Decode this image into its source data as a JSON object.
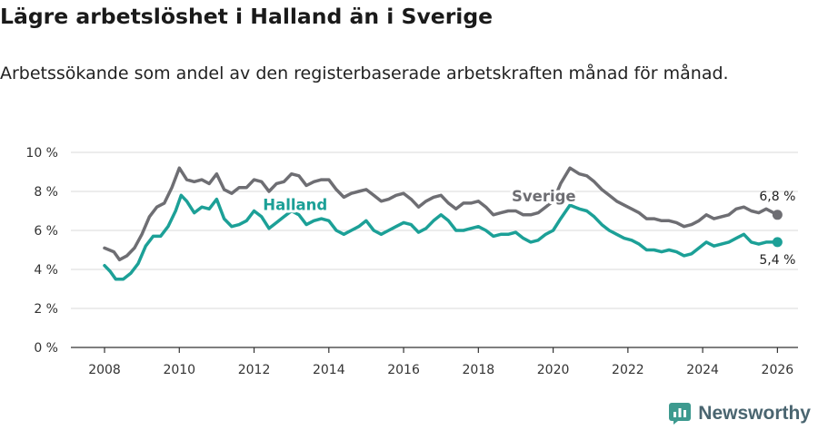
{
  "title": "Lägre arbetslöshet i Halland än i Sverige",
  "subtitle": "Arbetssökande som andel av den registerbaserade arbetskraften månad för månad.",
  "brand": {
    "name": "Newsworthy",
    "icon": "newsworthy-logo-icon",
    "color": "#3d9a8f"
  },
  "chart_data": {
    "type": "line",
    "title": "Lägre arbetslöshet i Halland än i Sverige",
    "xlabel": "",
    "ylabel": "",
    "xlim": [
      2007.1,
      2026.55
    ],
    "ylim": [
      0,
      10
    ],
    "grid": true,
    "x_ticks": [
      2008,
      2010,
      2012,
      2014,
      2016,
      2018,
      2020,
      2022,
      2024,
      2026
    ],
    "x_tick_labels": [
      "2008",
      "2010",
      "2012",
      "2014",
      "2016",
      "2018",
      "2020",
      "2022",
      "2024",
      "2026"
    ],
    "y_ticks": [
      0,
      2,
      4,
      6,
      8,
      10
    ],
    "y_tick_labels": [
      "0 %",
      "2 %",
      "4 %",
      "6 %",
      "8 %",
      "10 %"
    ],
    "series": [
      {
        "name": "Sverige",
        "label": "Sverige",
        "color": "#6e6e73",
        "end_label": "6,8 %",
        "label_at": [
          2019.75,
          7.5
        ],
        "points": [
          [
            2008.0,
            5.1
          ],
          [
            2008.25,
            4.9
          ],
          [
            2008.4,
            4.5
          ],
          [
            2008.6,
            4.7
          ],
          [
            2008.8,
            5.1
          ],
          [
            2009.0,
            5.8
          ],
          [
            2009.2,
            6.7
          ],
          [
            2009.4,
            7.2
          ],
          [
            2009.6,
            7.4
          ],
          [
            2009.8,
            8.2
          ],
          [
            2010.0,
            9.2
          ],
          [
            2010.2,
            8.6
          ],
          [
            2010.4,
            8.5
          ],
          [
            2010.6,
            8.6
          ],
          [
            2010.8,
            8.4
          ],
          [
            2011.0,
            8.9
          ],
          [
            2011.2,
            8.1
          ],
          [
            2011.4,
            7.9
          ],
          [
            2011.6,
            8.2
          ],
          [
            2011.8,
            8.2
          ],
          [
            2012.0,
            8.6
          ],
          [
            2012.2,
            8.5
          ],
          [
            2012.4,
            8.0
          ],
          [
            2012.6,
            8.4
          ],
          [
            2012.8,
            8.5
          ],
          [
            2013.0,
            8.9
          ],
          [
            2013.2,
            8.8
          ],
          [
            2013.4,
            8.3
          ],
          [
            2013.6,
            8.5
          ],
          [
            2013.8,
            8.6
          ],
          [
            2014.0,
            8.6
          ],
          [
            2014.2,
            8.1
          ],
          [
            2014.4,
            7.7
          ],
          [
            2014.6,
            7.9
          ],
          [
            2014.8,
            8.0
          ],
          [
            2015.0,
            8.1
          ],
          [
            2015.2,
            7.8
          ],
          [
            2015.4,
            7.5
          ],
          [
            2015.6,
            7.6
          ],
          [
            2015.8,
            7.8
          ],
          [
            2016.0,
            7.9
          ],
          [
            2016.2,
            7.6
          ],
          [
            2016.4,
            7.2
          ],
          [
            2016.6,
            7.5
          ],
          [
            2016.8,
            7.7
          ],
          [
            2017.0,
            7.8
          ],
          [
            2017.2,
            7.4
          ],
          [
            2017.4,
            7.1
          ],
          [
            2017.6,
            7.4
          ],
          [
            2017.8,
            7.4
          ],
          [
            2018.0,
            7.5
          ],
          [
            2018.2,
            7.2
          ],
          [
            2018.4,
            6.8
          ],
          [
            2018.6,
            6.9
          ],
          [
            2018.8,
            7.0
          ],
          [
            2019.0,
            7.0
          ],
          [
            2019.2,
            6.8
          ],
          [
            2019.4,
            6.8
          ],
          [
            2019.6,
            6.9
          ],
          [
            2019.8,
            7.2
          ],
          [
            2020.0,
            7.5
          ],
          [
            2020.2,
            8.4
          ],
          [
            2020.45,
            9.2
          ],
          [
            2020.7,
            8.9
          ],
          [
            2020.9,
            8.8
          ],
          [
            2021.1,
            8.5
          ],
          [
            2021.3,
            8.1
          ],
          [
            2021.5,
            7.8
          ],
          [
            2021.7,
            7.5
          ],
          [
            2021.9,
            7.3
          ],
          [
            2022.1,
            7.1
          ],
          [
            2022.3,
            6.9
          ],
          [
            2022.5,
            6.6
          ],
          [
            2022.7,
            6.6
          ],
          [
            2022.9,
            6.5
          ],
          [
            2023.1,
            6.5
          ],
          [
            2023.3,
            6.4
          ],
          [
            2023.5,
            6.2
          ],
          [
            2023.7,
            6.3
          ],
          [
            2023.9,
            6.5
          ],
          [
            2024.1,
            6.8
          ],
          [
            2024.3,
            6.6
          ],
          [
            2024.5,
            6.7
          ],
          [
            2024.7,
            6.8
          ],
          [
            2024.9,
            7.1
          ],
          [
            2025.1,
            7.2
          ],
          [
            2025.3,
            7.0
          ],
          [
            2025.5,
            6.9
          ],
          [
            2025.7,
            7.1
          ],
          [
            2026.0,
            6.8
          ]
        ]
      },
      {
        "name": "Halland",
        "label": "Halland",
        "color": "#1ca097",
        "end_label": "5,4 %",
        "label_at": [
          2013.1,
          7.05
        ],
        "points": [
          [
            2008.0,
            4.2
          ],
          [
            2008.15,
            3.9
          ],
          [
            2008.3,
            3.5
          ],
          [
            2008.5,
            3.5
          ],
          [
            2008.7,
            3.8
          ],
          [
            2008.9,
            4.3
          ],
          [
            2009.1,
            5.2
          ],
          [
            2009.3,
            5.7
          ],
          [
            2009.5,
            5.7
          ],
          [
            2009.7,
            6.2
          ],
          [
            2009.9,
            7.0
          ],
          [
            2010.05,
            7.8
          ],
          [
            2010.2,
            7.5
          ],
          [
            2010.4,
            6.9
          ],
          [
            2010.6,
            7.2
          ],
          [
            2010.8,
            7.1
          ],
          [
            2011.0,
            7.6
          ],
          [
            2011.2,
            6.6
          ],
          [
            2011.4,
            6.2
          ],
          [
            2011.6,
            6.3
          ],
          [
            2011.8,
            6.5
          ],
          [
            2012.0,
            7.0
          ],
          [
            2012.2,
            6.7
          ],
          [
            2012.4,
            6.1
          ],
          [
            2012.6,
            6.4
          ],
          [
            2012.8,
            6.7
          ],
          [
            2013.0,
            7.0
          ],
          [
            2013.2,
            6.8
          ],
          [
            2013.4,
            6.3
          ],
          [
            2013.6,
            6.5
          ],
          [
            2013.8,
            6.6
          ],
          [
            2014.0,
            6.5
          ],
          [
            2014.2,
            6.0
          ],
          [
            2014.4,
            5.8
          ],
          [
            2014.6,
            6.0
          ],
          [
            2014.8,
            6.2
          ],
          [
            2015.0,
            6.5
          ],
          [
            2015.2,
            6.0
          ],
          [
            2015.4,
            5.8
          ],
          [
            2015.6,
            6.0
          ],
          [
            2015.8,
            6.2
          ],
          [
            2016.0,
            6.4
          ],
          [
            2016.2,
            6.3
          ],
          [
            2016.4,
            5.9
          ],
          [
            2016.6,
            6.1
          ],
          [
            2016.8,
            6.5
          ],
          [
            2017.0,
            6.8
          ],
          [
            2017.2,
            6.5
          ],
          [
            2017.4,
            6.0
          ],
          [
            2017.6,
            6.0
          ],
          [
            2017.8,
            6.1
          ],
          [
            2018.0,
            6.2
          ],
          [
            2018.2,
            6.0
          ],
          [
            2018.4,
            5.7
          ],
          [
            2018.6,
            5.8
          ],
          [
            2018.8,
            5.8
          ],
          [
            2019.0,
            5.9
          ],
          [
            2019.2,
            5.6
          ],
          [
            2019.4,
            5.4
          ],
          [
            2019.6,
            5.5
          ],
          [
            2019.8,
            5.8
          ],
          [
            2020.0,
            6.0
          ],
          [
            2020.2,
            6.6
          ],
          [
            2020.45,
            7.3
          ],
          [
            2020.7,
            7.1
          ],
          [
            2020.9,
            7.0
          ],
          [
            2021.1,
            6.7
          ],
          [
            2021.3,
            6.3
          ],
          [
            2021.5,
            6.0
          ],
          [
            2021.7,
            5.8
          ],
          [
            2021.9,
            5.6
          ],
          [
            2022.1,
            5.5
          ],
          [
            2022.3,
            5.3
          ],
          [
            2022.5,
            5.0
          ],
          [
            2022.7,
            5.0
          ],
          [
            2022.9,
            4.9
          ],
          [
            2023.1,
            5.0
          ],
          [
            2023.3,
            4.9
          ],
          [
            2023.5,
            4.7
          ],
          [
            2023.7,
            4.8
          ],
          [
            2023.9,
            5.1
          ],
          [
            2024.1,
            5.4
          ],
          [
            2024.3,
            5.2
          ],
          [
            2024.5,
            5.3
          ],
          [
            2024.7,
            5.4
          ],
          [
            2024.9,
            5.6
          ],
          [
            2025.1,
            5.8
          ],
          [
            2025.3,
            5.4
          ],
          [
            2025.5,
            5.3
          ],
          [
            2025.7,
            5.4
          ],
          [
            2026.0,
            5.4
          ]
        ]
      }
    ]
  }
}
